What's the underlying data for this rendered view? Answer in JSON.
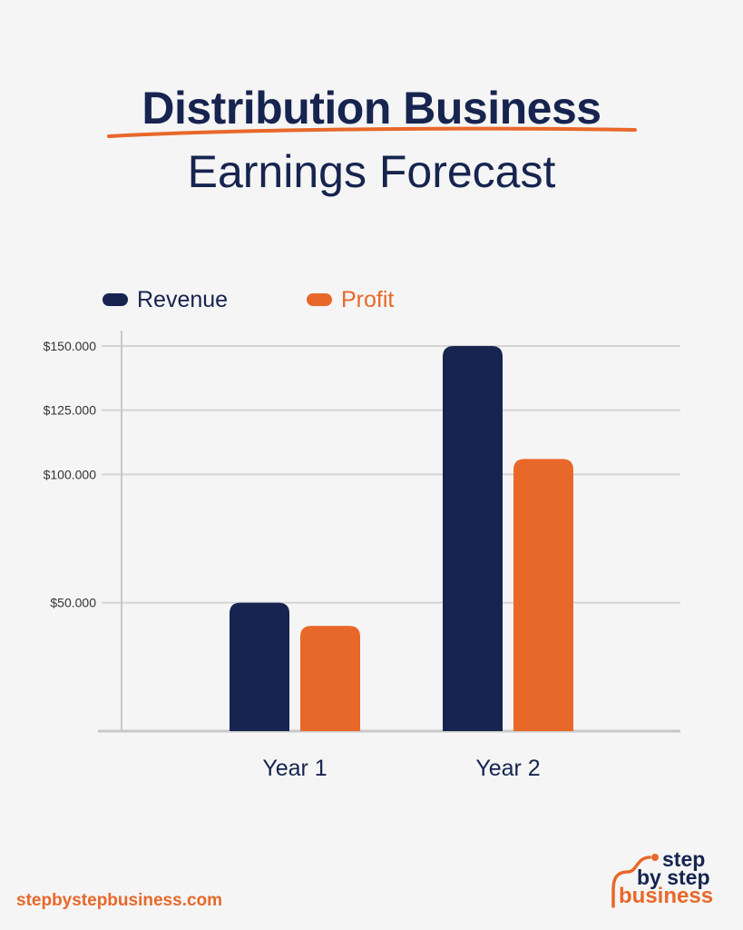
{
  "header": {
    "title_line1": "Distribution Business",
    "title_line2": "Earnings Forecast"
  },
  "colors": {
    "navy": "#16244f",
    "orange": "#e8682a",
    "grid": "#d4d4d4",
    "axis": "#c8c8c8"
  },
  "chart_data": {
    "type": "bar",
    "categories": [
      "Year 1",
      "Year 2"
    ],
    "series": [
      {
        "name": "Revenue",
        "color": "#16244f",
        "values": [
          50000,
          150000
        ]
      },
      {
        "name": "Profit",
        "color": "#e8682a",
        "values": [
          41000,
          106000
        ]
      }
    ],
    "yticks": [
      50000,
      100000,
      125000,
      150000
    ],
    "ytick_labels": [
      "$50.000",
      "$100.000",
      "$125.000",
      "$150.000"
    ],
    "ylim": [
      0,
      150000
    ],
    "grid": true,
    "legend_position": "top-left",
    "title": "",
    "xlabel": "",
    "ylabel": ""
  },
  "footer": {
    "url": "stepbystepbusiness.com",
    "logo_line1": "step",
    "logo_line2": "by step",
    "logo_line3": "business"
  }
}
